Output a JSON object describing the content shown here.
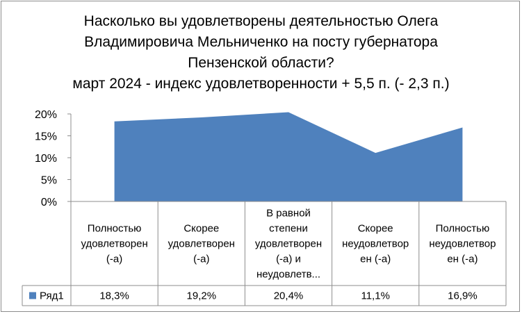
{
  "chart_data": {
    "type": "area",
    "title_lines": [
      "Насколько вы удовлетворены деятельностью Олега",
      "Владимировича Мельниченко на посту губернатора",
      "Пензенской области?",
      "март 2024 - индекс удовлетворенности + 5,5 п. (- 2,3 п.)"
    ],
    "categories": [
      [
        "Полностью",
        "удовлетворен",
        "(-а)"
      ],
      [
        "Скорее",
        "удовлетворен",
        "(-а)"
      ],
      [
        "В равной",
        "степени",
        "удовлетворен",
        "(-а) и",
        "неудовлетв..."
      ],
      [
        "Скорее",
        "неудовлетвор",
        "ен (-а)"
      ],
      [
        "Полностью",
        "неудовлетвор",
        "ен (-а)"
      ]
    ],
    "series": [
      {
        "name": "Ряд1",
        "values": [
          18.3,
          19.2,
          20.4,
          11.1,
          16.9
        ],
        "labels": [
          "18,3%",
          "19,2%",
          "20,4%",
          "11,1%",
          "16,9%"
        ],
        "color": "#4f81bd"
      }
    ],
    "yticks": [
      "0%",
      "5%",
      "10%",
      "15%",
      "20%"
    ],
    "ylim": [
      0,
      20
    ],
    "data_table": true,
    "legend_key_in_table": true,
    "grid": false
  }
}
